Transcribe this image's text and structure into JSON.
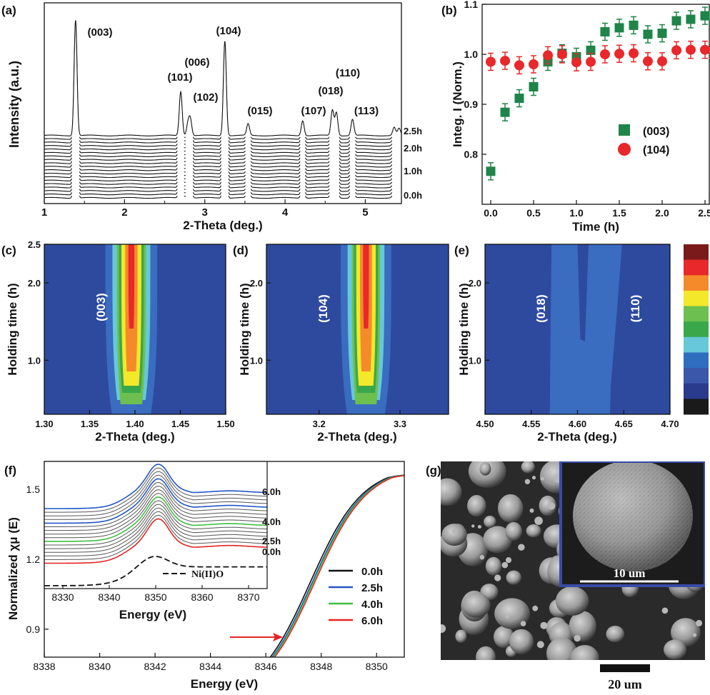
{
  "chart_data": [
    {
      "panel": "(a)",
      "type": "line",
      "xlabel": "2-Theta (deg.)",
      "ylabel": "Intensity (a.u.)",
      "xlim": [
        1,
        5.45
      ],
      "xticks": [
        "1",
        "2",
        "3",
        "4",
        "5"
      ],
      "series_count": 19,
      "peaks": [
        {
          "label": "(003)",
          "x": 1.39,
          "h": 1.0
        },
        {
          "label": "(101)",
          "x": 2.7,
          "h": 0.38
        },
        {
          "label": "(006)",
          "x": 2.79,
          "h": 0.1
        },
        {
          "label": "(102)",
          "x": 2.82,
          "h": 0.14
        },
        {
          "label": "(104)",
          "x": 3.25,
          "h": 0.82
        },
        {
          "label": "(015)",
          "x": 3.54,
          "h": 0.1
        },
        {
          "label": "(107)",
          "x": 4.22,
          "h": 0.13
        },
        {
          "label": "(018)",
          "x": 4.59,
          "h": 0.22
        },
        {
          "label": "(110)",
          "x": 4.64,
          "h": 0.2
        },
        {
          "label": "(113)",
          "x": 4.84,
          "h": 0.14
        },
        {
          "label": "",
          "x": 5.36,
          "h": 0.07
        },
        {
          "label": "",
          "x": 5.42,
          "h": 0.06
        }
      ],
      "time_labels": [
        "2.5h",
        "2.0h",
        "1.0h",
        "0.0h"
      ]
    },
    {
      "panel": "(b)",
      "type": "scatter",
      "xlabel": "Time (h)",
      "ylabel": "Integ. I (Norm.)",
      "xlim": [
        -0.1,
        2.55
      ],
      "ylim": [
        0.7,
        1.1
      ],
      "xticks": [
        "0.0",
        "0.5",
        "1.0",
        "1.5",
        "2.0",
        "2.5"
      ],
      "yticks": [
        "0.8",
        "0.9",
        "1.0",
        "1.1"
      ],
      "x": [
        0,
        0.167,
        0.333,
        0.5,
        0.667,
        0.833,
        1.0,
        1.167,
        1.333,
        1.5,
        1.667,
        1.833,
        2.0,
        2.167,
        2.333,
        2.5
      ],
      "series": [
        {
          "name": "(003)",
          "color": "#1e8449",
          "marker": "square",
          "values": [
            0.766,
            0.884,
            0.912,
            0.935,
            0.985,
            1.002,
            0.995,
            1.008,
            1.045,
            1.053,
            1.058,
            1.04,
            1.042,
            1.067,
            1.07,
            1.077
          ]
        },
        {
          "name": "(104)",
          "color": "#e8282b",
          "marker": "circle",
          "values": [
            0.985,
            0.987,
            0.978,
            0.98,
            0.998,
            1.0,
            0.984,
            0.985,
            1.0,
            1.001,
            1.002,
            0.986,
            0.986,
            1.008,
            1.009,
            1.009
          ]
        }
      ]
    },
    {
      "panel": "(c)",
      "type": "heatmap",
      "peak_label": "(003)",
      "xlabel": "2-Theta (deg.)",
      "ylabel": "Holding time (h)",
      "xlim": [
        1.3,
        1.5
      ],
      "ylim": [
        0.3,
        2.5
      ],
      "xticks": [
        "1.30",
        "1.35",
        "1.40",
        "1.45",
        "1.50"
      ],
      "yticks": [
        "1.0",
        "2.0",
        "2.5"
      ],
      "peak_center": 1.396,
      "peak_width": 0.011
    },
    {
      "panel": "(d)",
      "type": "heatmap",
      "peak_label": "(104)",
      "xlabel": "2-Theta (deg.)",
      "ylabel": "Holding time (h)",
      "xlim": [
        3.135,
        3.36
      ],
      "ylim": [
        0.3,
        2.5
      ],
      "xticks": [
        "3.2",
        "3.3"
      ],
      "yticks": [
        "1.0",
        "2.0"
      ],
      "peak_center": 3.258,
      "peak_width": 0.012
    },
    {
      "panel": "(e)",
      "type": "heatmap",
      "peak_labels": [
        "(018)",
        "(110)"
      ],
      "xlabel": "2-Theta (deg.)",
      "ylabel": "Holding time (h)",
      "xlim": [
        4.5,
        4.7
      ],
      "ylim": [
        0.3,
        2.5
      ],
      "xticks": [
        "4.50",
        "4.55",
        "4.60",
        "4.65",
        "4.70"
      ],
      "yticks": [
        "1.0",
        "2.0"
      ]
    },
    {
      "panel": "(f)",
      "type": "line",
      "xlabel": "Energy (eV)",
      "ylabel": "Normalized χμ (E)",
      "xlim": [
        8338,
        8351
      ],
      "ylim": [
        0.78,
        1.62
      ],
      "xticks": [
        "8338",
        "8340",
        "8342",
        "8344",
        "8346",
        "8348",
        "8350"
      ],
      "yticks": [
        "0.9",
        "1.2",
        "1.5"
      ],
      "legend": [
        {
          "name": "0.0h",
          "color": "#111111"
        },
        {
          "name": "2.5h",
          "color": "#2255c4"
        },
        {
          "name": "4.0h",
          "color": "#3fbf3f"
        },
        {
          "name": "6.0h",
          "color": "#e52222"
        }
      ],
      "inset": {
        "xlabel": "Energy (eV)",
        "xlim": [
          8326,
          8374
        ],
        "xticks": [
          "8330",
          "8340",
          "8350",
          "8360",
          "8370"
        ],
        "labels": [
          "6.0h",
          "4.0h",
          "2.5h",
          "0.0h"
        ],
        "reference": "Ni(II)O",
        "series_count": 16
      }
    }
  ],
  "colorbar": [
    "#7a1a1a",
    "#e8282b",
    "#f58a2a",
    "#f3e82a",
    "#6dbf4f",
    "#3aa84a",
    "#66c8d8",
    "#2e6ec0",
    "#3a57a8",
    "#2a3a8c",
    "#1a1a1a"
  ],
  "panel_g": {
    "label": "(g)",
    "scale_main": "20 um",
    "scale_inset": "10 um"
  }
}
